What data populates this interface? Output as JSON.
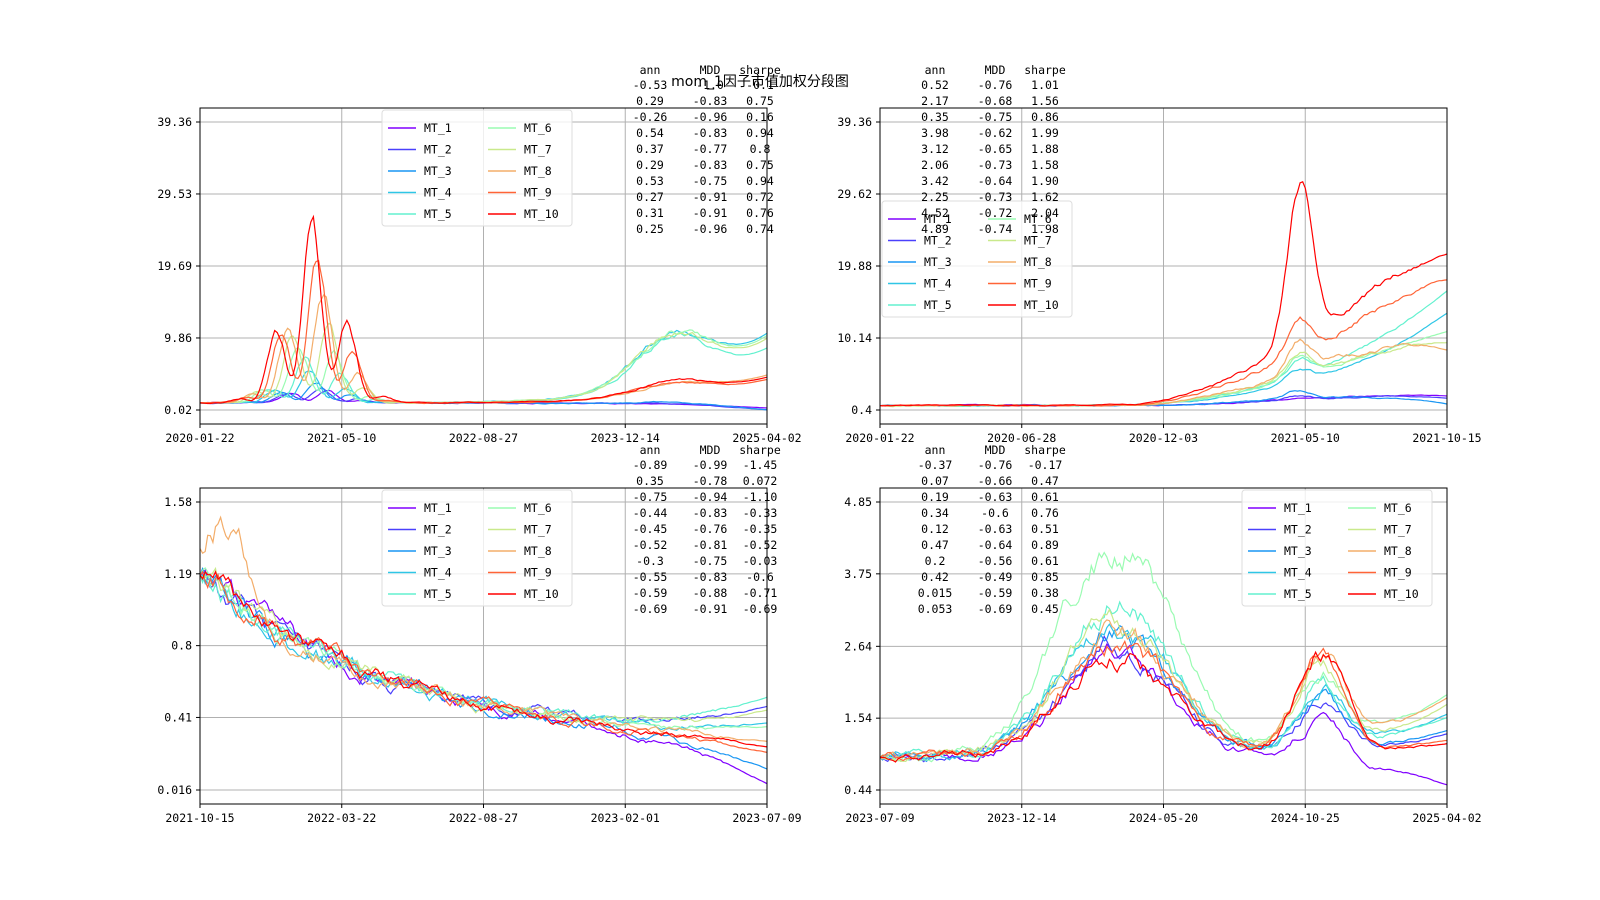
{
  "figure": {
    "title": "mom_1因子市值加权分段图"
  },
  "colors": [
    "#8000ff",
    "#4a40fc",
    "#1996f3",
    "#2fc6e6",
    "#63f1cf",
    "#9afbb2",
    "#c9e98c",
    "#f3ad6a",
    "#ff6437",
    "#ff0000"
  ],
  "chart_data": [
    {
      "type": "line",
      "series_names": [
        "MT_1",
        "MT_2",
        "MT_3",
        "MT_4",
        "MT_5",
        "MT_6",
        "MT_7",
        "MT_8",
        "MT_9",
        "MT_10"
      ],
      "x": [
        "2020-01-22",
        "2021-05-10",
        "2022-08-27",
        "2023-12-14",
        "2025-04-02"
      ],
      "y_ticks": [
        "0.02",
        "9.86",
        "19.69",
        "29.53",
        "39.36"
      ],
      "ylim": [
        0.02,
        39.36
      ],
      "legend": "upper-middle",
      "final": [
        0.3,
        0.06,
        0.05,
        10.5,
        8.5,
        10.2,
        9.8,
        4.8,
        4.2,
        4.5
      ],
      "stats": {
        "header": [
          "ann",
          "MDD",
          "sharpe"
        ],
        "rows": [
          [
            "-0.53",
            "-1.0",
            "-0.1"
          ],
          [
            "0.29",
            "-0.83",
            "0.75"
          ],
          [
            "-0.26",
            "-0.96",
            "0.16"
          ],
          [
            "0.54",
            "-0.83",
            "0.94"
          ],
          [
            "0.37",
            "-0.77",
            "0.8"
          ],
          [
            "0.29",
            "-0.83",
            "0.75"
          ],
          [
            "0.53",
            "-0.75",
            "0.94"
          ],
          [
            "0.27",
            "-0.91",
            "0.72"
          ],
          [
            "0.31",
            "-0.91",
            "0.76"
          ],
          [
            "0.25",
            "-0.96",
            "0.74"
          ]
        ]
      }
    },
    {
      "type": "line",
      "series_names": [
        "MT_1",
        "MT_2",
        "MT_3",
        "MT_4",
        "MT_5",
        "MT_6",
        "MT_7",
        "MT_8",
        "MT_9",
        "MT_10"
      ],
      "x": [
        "2020-01-22",
        "2020-06-28",
        "2020-12-03",
        "2021-05-10",
        "2021-10-15"
      ],
      "y_ticks": [
        "0.4",
        "10.14",
        "19.88",
        "29.62",
        "39.36"
      ],
      "ylim": [
        0.4,
        39.36
      ],
      "legend": "center-left",
      "final": [
        2.3,
        2.0,
        1.2,
        13.5,
        16.5,
        11.0,
        9.5,
        8.5,
        18.0,
        21.5
      ],
      "stats": {
        "header": [
          "ann",
          "MDD",
          "sharpe"
        ],
        "rows": [
          [
            "0.52",
            "-0.76",
            "1.01"
          ],
          [
            "2.17",
            "-0.68",
            "1.56"
          ],
          [
            "0.35",
            "-0.75",
            "0.86"
          ],
          [
            "3.98",
            "-0.62",
            "1.99"
          ],
          [
            "3.12",
            "-0.65",
            "1.88"
          ],
          [
            "2.06",
            "-0.73",
            "1.58"
          ],
          [
            "3.42",
            "-0.64",
            "1.90"
          ],
          [
            "2.25",
            "-0.73",
            "1.62"
          ],
          [
            "4.52",
            "-0.72",
            "2.04"
          ],
          [
            "4.89",
            "-0.74",
            "1.98"
          ]
        ]
      }
    },
    {
      "type": "line",
      "series_names": [
        "MT_1",
        "MT_2",
        "MT_3",
        "MT_4",
        "MT_5",
        "MT_6",
        "MT_7",
        "MT_8",
        "MT_9",
        "MT_10"
      ],
      "x": [
        "2021-10-15",
        "2022-03-22",
        "2022-08-27",
        "2023-02-01",
        "2023-07-09"
      ],
      "y_ticks": [
        "0.016",
        "0.41",
        "0.8",
        "1.19",
        "1.58"
      ],
      "ylim": [
        0.016,
        1.58
      ],
      "legend": "upper-middle",
      "final": [
        0.05,
        0.47,
        0.13,
        0.38,
        0.52,
        0.36,
        0.45,
        0.28,
        0.22,
        0.25
      ],
      "stats": {
        "header": [
          "ann",
          "MDD",
          "sharpe"
        ],
        "rows": [
          [
            "-0.89",
            "-0.99",
            "-1.45"
          ],
          [
            "0.35",
            "-0.78",
            "0.072"
          ],
          [
            "-0.75",
            "-0.94",
            "-1.10"
          ],
          [
            "-0.44",
            "-0.83",
            "-0.33"
          ],
          [
            "-0.45",
            "-0.76",
            "-0.35"
          ],
          [
            "-0.52",
            "-0.81",
            "-0.52"
          ],
          [
            "-0.3",
            "-0.75",
            "-0.03"
          ],
          [
            "-0.55",
            "-0.83",
            "-0.6"
          ],
          [
            "-0.59",
            "-0.88",
            "-0.71"
          ],
          [
            "-0.69",
            "-0.91",
            "-0.69"
          ]
        ]
      }
    },
    {
      "type": "line",
      "series_names": [
        "MT_1",
        "MT_2",
        "MT_3",
        "MT_4",
        "MT_5",
        "MT_6",
        "MT_7",
        "MT_8",
        "MT_9",
        "MT_10"
      ],
      "x": [
        "2023-07-09",
        "2023-12-14",
        "2024-05-20",
        "2024-10-25",
        "2025-04-02"
      ],
      "y_ticks": [
        "0.44",
        "1.54",
        "2.64",
        "3.75",
        "4.85"
      ],
      "ylim": [
        0.44,
        4.85
      ],
      "legend": "upper-right",
      "final": [
        0.52,
        1.3,
        1.35,
        1.6,
        1.55,
        1.9,
        1.75,
        1.85,
        1.2,
        1.15
      ],
      "stats": {
        "header": [
          "ann",
          "MDD",
          "sharpe"
        ],
        "rows": [
          [
            "-0.37",
            "-0.76",
            "-0.17"
          ],
          [
            "0.07",
            "-0.66",
            "0.47"
          ],
          [
            "0.19",
            "-0.63",
            "0.61"
          ],
          [
            "0.34",
            "-0.6",
            "0.76"
          ],
          [
            "0.12",
            "-0.63",
            "0.51"
          ],
          [
            "0.47",
            "-0.64",
            "0.89"
          ],
          [
            "0.2",
            "-0.56",
            "0.61"
          ],
          [
            "0.42",
            "-0.49",
            "0.85"
          ],
          [
            "0.015",
            "-0.59",
            "0.38"
          ],
          [
            "0.053",
            "-0.69",
            "0.45"
          ]
        ]
      }
    }
  ]
}
